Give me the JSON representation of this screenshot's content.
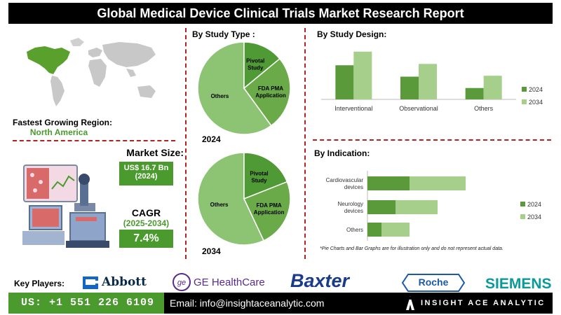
{
  "title": "Global Medical Device Clinical Trials Market Research Report",
  "region": {
    "label": "Fastest Growing Region:",
    "value": "North America"
  },
  "market_size": {
    "label": "Market Size:",
    "value": "US$ 16.7 Bn",
    "year": "(2024)"
  },
  "cagr": {
    "label": "CAGR",
    "period": "(2025-2034)",
    "value": "7.4%"
  },
  "study_type": {
    "title": "By Study Type :"
  },
  "study_design": {
    "title": "By Study Design:"
  },
  "indication": {
    "title": "By Indication:"
  },
  "note": "*Pie Charts and Bar Graphs are for illustration only and do not represent actual data.",
  "key_players": {
    "label": "Key Players:",
    "logos": [
      "Abbott",
      "GE HealthCare",
      "Baxter",
      "Roche",
      "SIEMENS"
    ]
  },
  "footer": {
    "phone": "US: +1 551 226 6109",
    "email": "Email: info@insightaceanalytic.com",
    "brand": "INSIGHT ACE ANALYTIC"
  },
  "colors": {
    "dark_green": "#5a9a3a",
    "light_green": "#a5cf8b",
    "pie_light": "#8cc474",
    "pie_dark": "#4f9a35",
    "pie_mid": "#6aaa48",
    "accent_red": "#b22222"
  },
  "chart_data": [
    {
      "type": "pie",
      "year_label": "2024",
      "slices": [
        {
          "label": "Others",
          "value": 60
        },
        {
          "label": "Pivotal Study",
          "value": 14
        },
        {
          "label": "FDA PMA Application",
          "value": 26
        }
      ]
    },
    {
      "type": "pie",
      "year_label": "2034",
      "slices": [
        {
          "label": "Others",
          "value": 57
        },
        {
          "label": "Pivotal Study",
          "value": 19
        },
        {
          "label": "FDA PMA Application",
          "value": 24
        }
      ]
    },
    {
      "type": "bar",
      "categories": [
        "Interventional",
        "Observational",
        "Others"
      ],
      "series": [
        {
          "name": "2024",
          "values": [
            7.5,
            5.0,
            2.5
          ]
        },
        {
          "name": "2034",
          "values": [
            10.5,
            7.8,
            5.2
          ]
        }
      ],
      "ylim": [
        0,
        12
      ],
      "legend": "right"
    },
    {
      "type": "bar",
      "orientation": "horizontal",
      "categories": [
        "Cardiovascular devices",
        "Neurology devices",
        "Others"
      ],
      "series": [
        {
          "name": "2024",
          "values": [
            6.0,
            4.0,
            2.0
          ]
        },
        {
          "name": "2034",
          "values": [
            14.0,
            10.0,
            6.0
          ]
        }
      ],
      "xlim": [
        0,
        20
      ],
      "legend": "right"
    }
  ]
}
